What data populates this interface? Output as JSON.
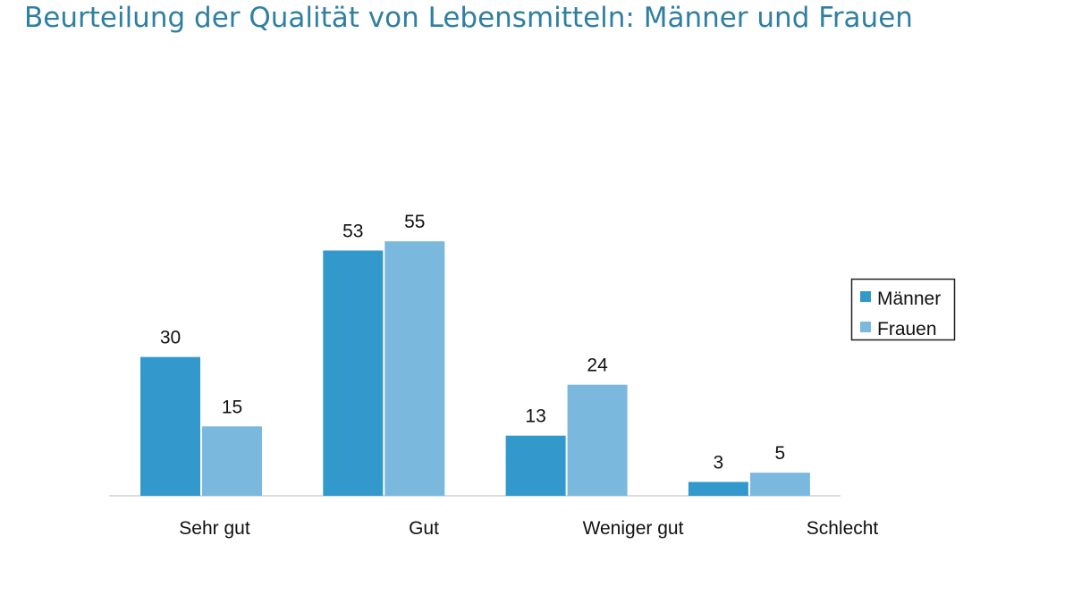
{
  "chart_data": {
    "type": "bar",
    "title": "Beurteilung der Qualität von Lebensmitteln: Männer und Frauen",
    "categories": [
      "Sehr gut",
      "Gut",
      "Weniger gut",
      "Schlecht"
    ],
    "series": [
      {
        "name": "Männer",
        "values": [
          30,
          53,
          13,
          3
        ],
        "color": "#3399cc"
      },
      {
        "name": "Frauen",
        "values": [
          15,
          55,
          24,
          5
        ],
        "color": "#7ab9dd"
      }
    ],
    "xlabel": "",
    "ylabel": "",
    "ylim": [
      0,
      60
    ],
    "grid": false,
    "legend": "right",
    "data_labels": true
  }
}
